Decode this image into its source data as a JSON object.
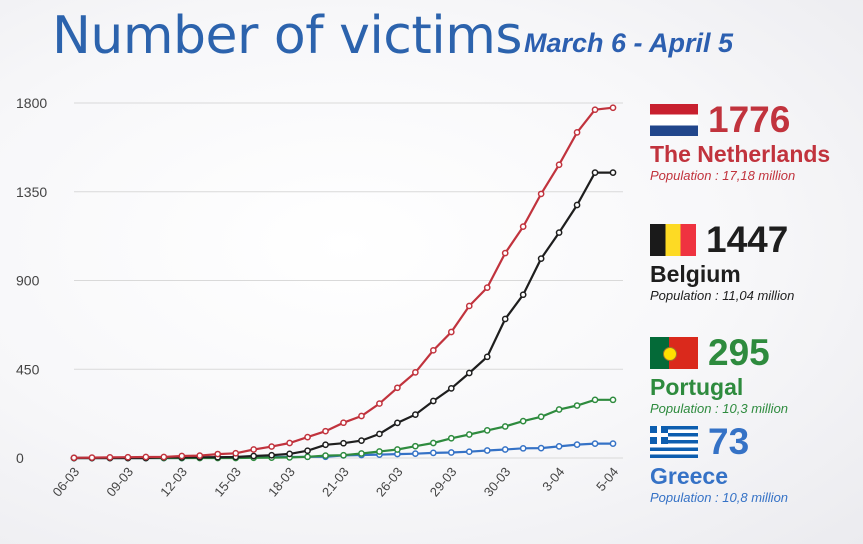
{
  "title": "Number of victims",
  "subtitle": "March 6 - April 5",
  "colors": {
    "netherlands": "#c1333d",
    "belgium": "#1e1e1e",
    "portugal": "#2e8b3e",
    "greece": "#3572c6",
    "axis_text": "#444444",
    "grid": "#d9d9d9"
  },
  "legend": [
    {
      "key": "netherlands",
      "value": "1776",
      "name": "The Netherlands",
      "population": "Population : 17,18 million",
      "flag": "netherlands-flag"
    },
    {
      "key": "belgium",
      "value": "1447",
      "name": "Belgium",
      "population": "Population : 11,04 million",
      "flag": "belgium-flag"
    },
    {
      "key": "portugal",
      "value": "295",
      "name": "Portugal",
      "population": "Population : 10,3 million",
      "flag": "portugal-flag"
    },
    {
      "key": "greece",
      "value": "73",
      "name": "Greece",
      "population": "Population : 10,8 million",
      "flag": "greece-flag"
    }
  ],
  "chart_data": {
    "type": "line",
    "title": "Number of victims",
    "subtitle": "March 6 - April 5",
    "xlabel": "",
    "ylabel": "",
    "ylim": [
      0,
      1800
    ],
    "yticks": [
      0,
      450,
      900,
      1350,
      1800
    ],
    "grid": true,
    "legend_position": "right",
    "x": [
      "06-03",
      "07-03",
      "08-03",
      "09-03",
      "10-03",
      "11-03",
      "12-03",
      "13-03",
      "14-03",
      "15-03",
      "16-03",
      "17-03",
      "18-03",
      "19-03",
      "20-03",
      "21-03",
      "22-03",
      "23-03",
      "24-03",
      "25-03",
      "26-03",
      "27-03",
      "28-03",
      "29-03",
      "30-03",
      "31-03",
      "01-04",
      "02-04",
      "03-04",
      "04-04",
      "05-04"
    ],
    "xtick_labels": [
      "06-03",
      "09-03",
      "12-03",
      "15-03",
      "18-03",
      "21-03",
      "26-03",
      "29-03",
      "30-03",
      "3-04",
      "5-04"
    ],
    "series": [
      {
        "name": "The Netherlands",
        "color": "#c1333d",
        "values": [
          1,
          2,
          3,
          4,
          5,
          5,
          10,
          12,
          20,
          24,
          43,
          58,
          76,
          106,
          136,
          179,
          213,
          276,
          356,
          434,
          546,
          639,
          771,
          864,
          1039,
          1173,
          1339,
          1487,
          1651,
          1766,
          1776
        ]
      },
      {
        "name": "Belgium",
        "color": "#1e1e1e",
        "values": [
          0,
          0,
          0,
          0,
          0,
          3,
          3,
          4,
          4,
          5,
          10,
          14,
          21,
          37,
          67,
          75,
          88,
          122,
          178,
          220,
          289,
          353,
          431,
          513,
          705,
          828,
          1011,
          1143,
          1283,
          1447,
          1447
        ]
      },
      {
        "name": "Portugal",
        "color": "#2e8b3e",
        "values": [
          0,
          0,
          0,
          0,
          0,
          0,
          0,
          0,
          0,
          0,
          1,
          2,
          3,
          6,
          12,
          14,
          23,
          33,
          43,
          60,
          76,
          100,
          119,
          140,
          160,
          187,
          209,
          246,
          266,
          295,
          295
        ]
      },
      {
        "name": "Greece",
        "color": "#3572c6",
        "values": [
          0,
          0,
          0,
          0,
          0,
          0,
          0,
          1,
          3,
          4,
          4,
          5,
          5,
          6,
          6,
          13,
          15,
          17,
          20,
          22,
          26,
          28,
          32,
          38,
          43,
          49,
          50,
          59,
          68,
          73,
          73
        ]
      }
    ]
  }
}
